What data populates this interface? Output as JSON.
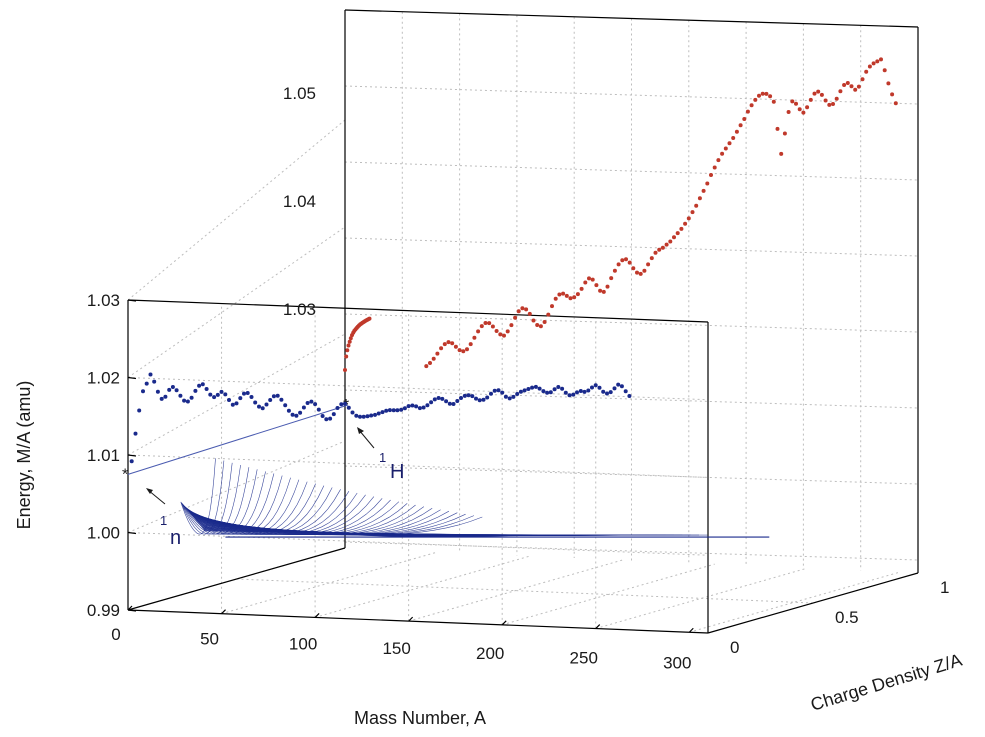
{
  "chart_data": {
    "type": "scatter",
    "projection": "3d",
    "grid": true,
    "xlabel": "Mass Number, A",
    "ylabel": "Energy, M/A (amu)",
    "zlabel": "Charge Density Z/A",
    "x_ticks": [
      "0",
      "50",
      "100",
      "150",
      "200",
      "250",
      "300"
    ],
    "z_ticks": [
      "0",
      "0.5",
      "1"
    ],
    "front_y_ticks": [
      "0.99",
      "1.00",
      "1.01",
      "1.02",
      "1.03"
    ],
    "back_y_ticks": [
      "1.03",
      "1.04",
      "1.05"
    ],
    "xlim": [
      0,
      310
    ],
    "front_ylim": [
      0.99,
      1.03
    ],
    "back_ylim": [
      1.025,
      1.056
    ],
    "series": [
      {
        "type": "scatter",
        "color": "#c0392b",
        "plane": "z=1",
        "x": [
          2,
          3,
          4,
          6,
          8,
          10,
          12,
          14,
          16,
          18,
          20,
          22,
          24,
          26,
          28,
          30,
          32,
          34,
          36,
          38,
          40,
          42,
          44,
          46,
          48,
          50,
          52,
          54,
          56,
          58,
          60,
          62,
          64,
          66,
          68,
          70,
          72,
          74,
          76,
          78,
          80,
          82,
          84,
          86,
          88,
          90,
          92,
          94,
          96,
          98,
          100,
          102,
          104,
          106,
          108,
          110,
          112,
          114,
          116,
          118,
          120,
          122,
          124,
          126,
          128,
          130,
          132,
          134,
          136,
          138,
          140,
          142,
          144,
          146,
          148,
          150,
          152,
          154,
          156,
          158,
          160,
          162,
          164,
          166,
          168,
          170,
          172,
          174,
          176,
          178,
          180,
          182,
          184,
          186,
          188,
          190,
          192,
          194,
          196,
          198,
          200,
          202,
          204,
          206,
          208,
          210,
          212,
          214,
          216,
          218,
          220,
          222,
          224,
          226,
          228,
          230,
          232,
          234,
          236,
          238,
          240,
          242,
          244,
          246,
          248,
          250,
          252,
          254,
          256,
          258,
          260,
          262,
          264,
          266,
          268,
          270,
          272,
          274,
          276,
          278,
          280,
          282,
          284,
          286,
          288,
          290,
          292,
          294,
          296,
          298
        ],
        "y": [
          1.0,
          1.0065,
          1.0095,
          1.0118,
          1.0136,
          1.0153,
          1.0168,
          1.0179,
          1.0188,
          1.0195,
          1.0202,
          1.0208,
          1.0214,
          1.0219,
          1.0223,
          1.0227,
          1.0231,
          1.0234,
          1.0238,
          1.0241,
          1.0244,
          1.0247,
          1.025,
          1.0253,
          1.0257,
          1.0262,
          1.0267,
          1.0271,
          1.0273,
          1.0272,
          1.0269,
          1.0266,
          1.0265,
          1.0267,
          1.0272,
          1.0278,
          1.0284,
          1.0289,
          1.0292,
          1.0292,
          1.0289,
          1.0285,
          1.0282,
          1.0281,
          1.0285,
          1.0291,
          1.0298,
          1.0304,
          1.0307,
          1.0306,
          1.0302,
          1.0296,
          1.0292,
          1.0291,
          1.0295,
          1.0302,
          1.031,
          1.0317,
          1.0321,
          1.0322,
          1.032,
          1.0318,
          1.0319,
          1.0322,
          1.0327,
          1.0333,
          1.0337,
          1.0336,
          1.0331,
          1.0326,
          1.0325,
          1.033,
          1.0338,
          1.0345,
          1.0351,
          1.0355,
          1.0356,
          1.0353,
          1.0348,
          1.0344,
          1.0343,
          1.0346,
          1.0352,
          1.0358,
          1.0363,
          1.0366,
          1.0368,
          1.0371,
          1.0374,
          1.0378,
          1.0382,
          1.0386,
          1.0391,
          1.0396,
          1.0402,
          1.0408,
          1.0415,
          1.0422,
          1.0429,
          1.0437,
          1.0444,
          1.0451,
          1.0457,
          1.0462,
          1.0467,
          1.0472,
          1.0478,
          1.0484,
          1.049,
          1.0497,
          1.0503,
          1.0508,
          1.0512,
          1.0514,
          1.0514,
          1.0512,
          1.0507,
          1.0482,
          1.0459,
          1.0478,
          1.0498,
          1.0508,
          1.0506,
          1.0501,
          1.0498,
          1.0503,
          1.051,
          1.0516,
          1.0518,
          1.0515,
          1.051,
          1.0506,
          1.0507,
          1.0512,
          1.0519,
          1.0525,
          1.0527,
          1.0524,
          1.0521,
          1.0524,
          1.0531,
          1.0538,
          1.0543,
          1.0546,
          1.0548,
          1.055,
          1.054,
          1.0528,
          1.0518,
          1.051
        ]
      },
      {
        "type": "scatter",
        "color": "#1a2a8c",
        "plane": "z=0",
        "x": [
          2,
          4,
          6,
          8,
          10,
          12,
          14,
          16,
          18,
          20,
          22,
          24,
          26,
          28,
          30,
          32,
          34,
          36,
          38,
          40,
          42,
          44,
          46,
          48,
          50,
          52,
          54,
          56,
          58,
          60,
          62,
          64,
          66,
          68,
          70,
          72,
          74,
          76,
          78,
          80,
          82,
          84,
          86,
          88,
          90,
          92,
          94,
          96,
          98,
          100,
          102,
          104,
          106,
          108,
          110,
          112,
          114,
          116,
          118,
          120,
          122,
          124,
          126,
          128,
          130,
          132,
          134,
          136,
          138,
          140,
          142,
          144,
          146,
          148,
          150,
          152,
          154,
          156,
          158,
          160,
          162,
          164,
          166,
          168,
          170,
          172,
          174,
          176,
          178,
          180,
          182,
          184,
          186,
          188,
          190,
          192,
          194,
          196,
          198,
          200,
          202,
          204,
          206,
          208,
          210,
          212,
          214,
          216,
          218,
          220,
          222,
          224,
          226,
          228,
          230,
          232,
          234,
          236,
          238,
          240,
          242,
          244,
          246,
          248,
          250,
          252,
          254,
          256,
          258,
          260,
          262,
          264,
          266,
          268
        ],
        "y": [
          1.0092,
          1.0128,
          1.0158,
          1.0183,
          1.0193,
          1.0205,
          1.0196,
          1.0183,
          1.0174,
          1.0177,
          1.0186,
          1.019,
          1.0186,
          1.0179,
          1.0173,
          1.0172,
          1.0177,
          1.0186,
          1.0193,
          1.0195,
          1.0189,
          1.0182,
          1.0179,
          1.0182,
          1.0186,
          1.0183,
          1.0176,
          1.017,
          1.0172,
          1.0179,
          1.0185,
          1.0186,
          1.0181,
          1.0174,
          1.0169,
          1.0167,
          1.0172,
          1.0178,
          1.0183,
          1.0184,
          1.0179,
          1.0172,
          1.0165,
          1.016,
          1.0159,
          1.0163,
          1.017,
          1.0176,
          1.0178,
          1.0175,
          1.0168,
          1.016,
          1.0156,
          1.0157,
          1.0163,
          1.0171,
          1.0176,
          1.0177,
          1.0172,
          1.0166,
          1.0162,
          1.0161,
          1.0161,
          1.0162,
          1.0163,
          1.0164,
          1.0166,
          1.0168,
          1.017,
          1.0171,
          1.0171,
          1.0171,
          1.0172,
          1.0174,
          1.0177,
          1.0178,
          1.0177,
          1.0175,
          1.0176,
          1.0179,
          1.0183,
          1.0187,
          1.0189,
          1.0188,
          1.0185,
          1.0182,
          1.0182,
          1.0186,
          1.019,
          1.0193,
          1.0194,
          1.0193,
          1.019,
          1.0188,
          1.0189,
          1.0192,
          1.0197,
          1.0201,
          1.0202,
          1.0199,
          1.0194,
          1.0192,
          1.0194,
          1.0198,
          1.0201,
          1.0203,
          1.0205,
          1.0207,
          1.0208,
          1.0206,
          1.0203,
          1.0201,
          1.0202,
          1.0206,
          1.0209,
          1.0207,
          1.0202,
          1.0199,
          1.02,
          1.0203,
          1.0205,
          1.0204,
          1.0206,
          1.021,
          1.0213,
          1.021,
          1.0205,
          1.0203,
          1.0205,
          1.021,
          1.0215,
          1.0213,
          1.0207,
          1.0201
        ]
      },
      {
        "type": "line",
        "name": "nuclide-fan",
        "color": "#1a2a8c",
        "a_range": [
          30,
          300
        ],
        "floor_energy": 1.0007,
        "z_span": [
          0.15,
          0.75
        ]
      }
    ],
    "annotations": [
      {
        "text": "n",
        "superscript": "1",
        "x": 1,
        "y": 1.0087,
        "z": 0
      },
      {
        "text": "H",
        "superscript": "1",
        "x": 1,
        "y": 1.0078,
        "z": 1
      }
    ]
  }
}
